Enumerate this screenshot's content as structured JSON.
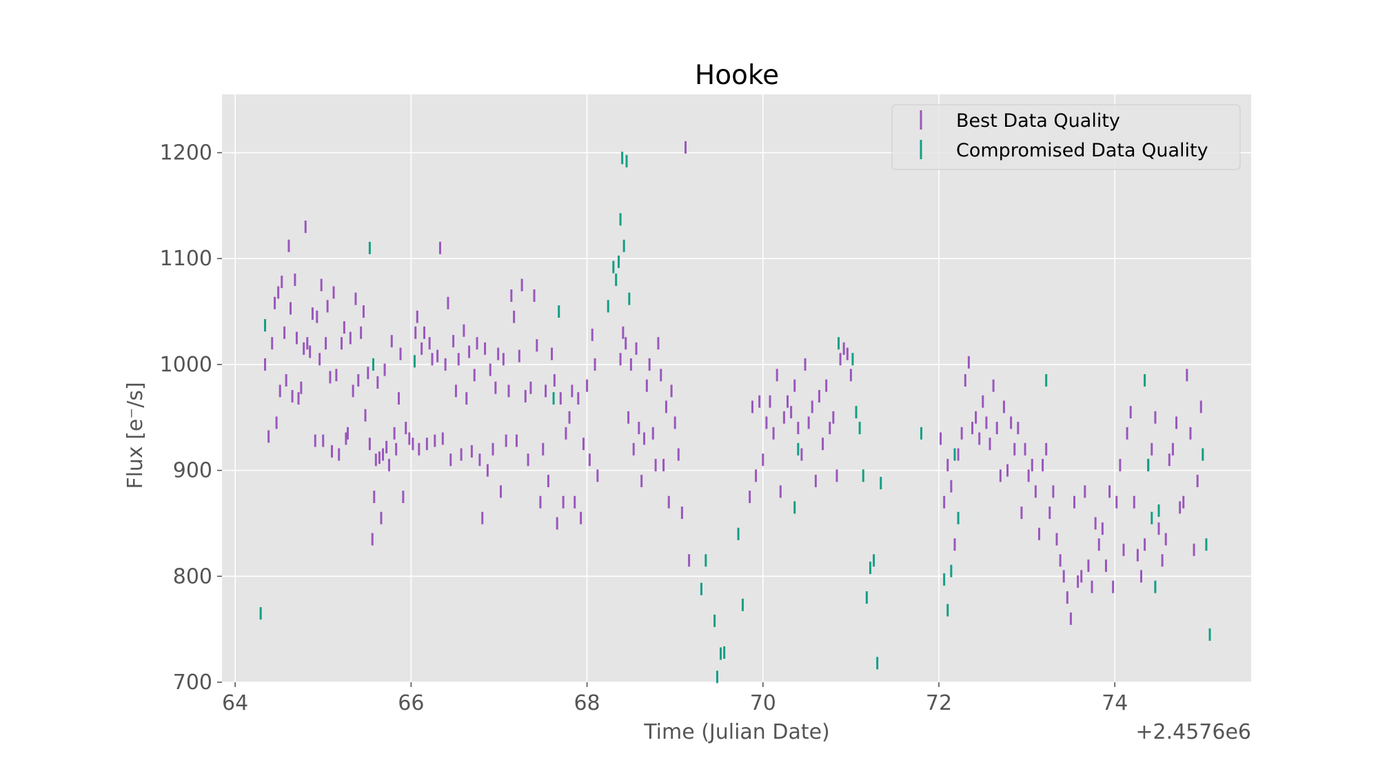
{
  "chart_data": {
    "type": "scatter",
    "title": "Hooke",
    "xlabel": "Time (Julian Date)",
    "ylabel": "Flux [e⁻/s]",
    "x_offset_label": "+2.4576e6",
    "xlim": [
      63.85,
      75.55
    ],
    "ylim": [
      700,
      1255
    ],
    "x_ticks": [
      64,
      66,
      68,
      70,
      72,
      74
    ],
    "y_ticks": [
      700,
      800,
      900,
      1000,
      1100,
      1200
    ],
    "grid": true,
    "legend_position": "top-right",
    "series": [
      {
        "name": "Best Data Quality",
        "color": "#9a56bd",
        "points": [
          [
            64.34,
            1000
          ],
          [
            64.38,
            932
          ],
          [
            64.42,
            1020
          ],
          [
            64.45,
            1058
          ],
          [
            64.47,
            945
          ],
          [
            64.49,
            1068
          ],
          [
            64.51,
            975
          ],
          [
            64.53,
            1078
          ],
          [
            64.56,
            1030
          ],
          [
            64.58,
            985
          ],
          [
            64.61,
            1112
          ],
          [
            64.63,
            1053
          ],
          [
            64.65,
            970
          ],
          [
            64.68,
            1080
          ],
          [
            64.7,
            1025
          ],
          [
            64.72,
            968
          ],
          [
            64.75,
            978
          ],
          [
            64.78,
            1015
          ],
          [
            64.8,
            1130
          ],
          [
            64.82,
            1020
          ],
          [
            64.85,
            1012
          ],
          [
            64.88,
            1048
          ],
          [
            64.91,
            928
          ],
          [
            64.93,
            1045
          ],
          [
            64.96,
            1005
          ],
          [
            64.98,
            1075
          ],
          [
            65.0,
            928
          ],
          [
            65.03,
            1020
          ],
          [
            65.05,
            1055
          ],
          [
            65.08,
            988
          ],
          [
            65.1,
            918
          ],
          [
            65.12,
            1068
          ],
          [
            65.15,
            990
          ],
          [
            65.18,
            915
          ],
          [
            65.21,
            1020
          ],
          [
            65.24,
            1035
          ],
          [
            65.26,
            930
          ],
          [
            65.28,
            935
          ],
          [
            65.31,
            1025
          ],
          [
            65.34,
            975
          ],
          [
            65.37,
            1062
          ],
          [
            65.4,
            985
          ],
          [
            65.43,
            1030
          ],
          [
            65.46,
            1050
          ],
          [
            65.48,
            952
          ],
          [
            65.51,
            992
          ],
          [
            65.53,
            925
          ],
          [
            65.56,
            835
          ],
          [
            65.58,
            875
          ],
          [
            65.6,
            910
          ],
          [
            65.62,
            983
          ],
          [
            65.64,
            912
          ],
          [
            65.66,
            855
          ],
          [
            65.68,
            915
          ],
          [
            65.7,
            995
          ],
          [
            65.72,
            922
          ],
          [
            65.75,
            905
          ],
          [
            65.78,
            1022
          ],
          [
            65.81,
            935
          ],
          [
            65.83,
            920
          ],
          [
            65.86,
            968
          ],
          [
            65.88,
            1010
          ],
          [
            65.91,
            875
          ],
          [
            65.94,
            940
          ],
          [
            65.98,
            930
          ],
          [
            66.02,
            925
          ],
          [
            66.05,
            1030
          ],
          [
            66.07,
            1045
          ],
          [
            66.09,
            920
          ],
          [
            66.12,
            1015
          ],
          [
            66.15,
            1030
          ],
          [
            66.18,
            925
          ],
          [
            66.21,
            1020
          ],
          [
            66.24,
            1005
          ],
          [
            66.27,
            928
          ],
          [
            66.3,
            1008
          ],
          [
            66.33,
            1110
          ],
          [
            66.36,
            930
          ],
          [
            66.39,
            1000
          ],
          [
            66.42,
            1058
          ],
          [
            66.45,
            910
          ],
          [
            66.48,
            1022
          ],
          [
            66.51,
            975
          ],
          [
            66.54,
            1005
          ],
          [
            66.57,
            915
          ],
          [
            66.6,
            1032
          ],
          [
            66.63,
            968
          ],
          [
            66.66,
            1012
          ],
          [
            66.69,
            918
          ],
          [
            66.72,
            990
          ],
          [
            66.75,
            1020
          ],
          [
            66.78,
            910
          ],
          [
            66.81,
            855
          ],
          [
            66.84,
            1015
          ],
          [
            66.87,
            900
          ],
          [
            66.9,
            995
          ],
          [
            66.93,
            920
          ],
          [
            66.96,
            978
          ],
          [
            66.99,
            1010
          ],
          [
            67.02,
            880
          ],
          [
            67.05,
            1005
          ],
          [
            67.08,
            928
          ],
          [
            67.11,
            975
          ],
          [
            67.14,
            1065
          ],
          [
            67.17,
            1045
          ],
          [
            67.2,
            928
          ],
          [
            67.23,
            1008
          ],
          [
            67.26,
            1075
          ],
          [
            67.3,
            970
          ],
          [
            67.33,
            910
          ],
          [
            67.36,
            978
          ],
          [
            67.4,
            1065
          ],
          [
            67.43,
            1018
          ],
          [
            67.47,
            870
          ],
          [
            67.5,
            920
          ],
          [
            67.53,
            975
          ],
          [
            67.56,
            890
          ],
          [
            67.6,
            1010
          ],
          [
            67.63,
            985
          ],
          [
            67.66,
            850
          ],
          [
            67.7,
            968
          ],
          [
            67.73,
            870
          ],
          [
            67.76,
            935
          ],
          [
            67.8,
            950
          ],
          [
            67.83,
            975
          ],
          [
            67.86,
            870
          ],
          [
            67.9,
            968
          ],
          [
            67.93,
            855
          ],
          [
            67.96,
            925
          ],
          [
            68.0,
            980
          ],
          [
            68.03,
            910
          ],
          [
            68.06,
            1028
          ],
          [
            68.09,
            1000
          ],
          [
            68.12,
            895
          ],
          [
            68.38,
            1005
          ],
          [
            68.41,
            1030
          ],
          [
            68.44,
            1020
          ],
          [
            68.47,
            950
          ],
          [
            68.5,
            1000
          ],
          [
            68.53,
            920
          ],
          [
            68.56,
            1015
          ],
          [
            68.59,
            940
          ],
          [
            68.62,
            890
          ],
          [
            68.65,
            930
          ],
          [
            68.68,
            980
          ],
          [
            68.71,
            1000
          ],
          [
            68.75,
            935
          ],
          [
            68.78,
            905
          ],
          [
            68.81,
            1020
          ],
          [
            68.84,
            990
          ],
          [
            68.87,
            905
          ],
          [
            68.9,
            960
          ],
          [
            68.93,
            870
          ],
          [
            68.96,
            975
          ],
          [
            69.0,
            945
          ],
          [
            69.04,
            915
          ],
          [
            69.08,
            860
          ],
          [
            69.12,
            1205
          ],
          [
            69.16,
            815
          ],
          [
            69.85,
            875
          ],
          [
            69.88,
            960
          ],
          [
            69.92,
            895
          ],
          [
            69.96,
            965
          ],
          [
            70.0,
            910
          ],
          [
            70.04,
            945
          ],
          [
            70.08,
            965
          ],
          [
            70.12,
            935
          ],
          [
            70.16,
            990
          ],
          [
            70.2,
            880
          ],
          [
            70.24,
            950
          ],
          [
            70.28,
            965
          ],
          [
            70.32,
            955
          ],
          [
            70.36,
            980
          ],
          [
            70.4,
            940
          ],
          [
            70.44,
            915
          ],
          [
            70.48,
            1000
          ],
          [
            70.52,
            945
          ],
          [
            70.56,
            960
          ],
          [
            70.6,
            890
          ],
          [
            70.64,
            970
          ],
          [
            70.68,
            925
          ],
          [
            70.72,
            980
          ],
          [
            70.76,
            940
          ],
          [
            70.8,
            950
          ],
          [
            70.84,
            895
          ],
          [
            70.88,
            1005
          ],
          [
            70.92,
            1015
          ],
          [
            70.96,
            1010
          ],
          [
            71.0,
            990
          ],
          [
            72.02,
            930
          ],
          [
            72.06,
            870
          ],
          [
            72.1,
            905
          ],
          [
            72.14,
            885
          ],
          [
            72.18,
            830
          ],
          [
            72.22,
            915
          ],
          [
            72.26,
            935
          ],
          [
            72.3,
            985
          ],
          [
            72.34,
            1002
          ],
          [
            72.38,
            940
          ],
          [
            72.42,
            950
          ],
          [
            72.46,
            930
          ],
          [
            72.5,
            965
          ],
          [
            72.54,
            945
          ],
          [
            72.58,
            925
          ],
          [
            72.62,
            980
          ],
          [
            72.66,
            940
          ],
          [
            72.7,
            895
          ],
          [
            72.74,
            960
          ],
          [
            72.78,
            900
          ],
          [
            72.82,
            945
          ],
          [
            72.86,
            920
          ],
          [
            72.9,
            940
          ],
          [
            72.94,
            860
          ],
          [
            72.98,
            920
          ],
          [
            73.02,
            895
          ],
          [
            73.06,
            905
          ],
          [
            73.1,
            880
          ],
          [
            73.14,
            840
          ],
          [
            73.18,
            905
          ],
          [
            73.22,
            920
          ],
          [
            73.26,
            860
          ],
          [
            73.3,
            880
          ],
          [
            73.34,
            835
          ],
          [
            73.38,
            815
          ],
          [
            73.42,
            800
          ],
          [
            73.46,
            780
          ],
          [
            73.5,
            760
          ],
          [
            73.54,
            870
          ],
          [
            73.58,
            795
          ],
          [
            73.62,
            800
          ],
          [
            73.66,
            880
          ],
          [
            73.7,
            810
          ],
          [
            73.74,
            790
          ],
          [
            73.78,
            850
          ],
          [
            73.82,
            830
          ],
          [
            73.86,
            845
          ],
          [
            73.9,
            810
          ],
          [
            73.94,
            880
          ],
          [
            73.98,
            790
          ],
          [
            74.02,
            870
          ],
          [
            74.06,
            905
          ],
          [
            74.1,
            825
          ],
          [
            74.14,
            935
          ],
          [
            74.18,
            955
          ],
          [
            74.22,
            870
          ],
          [
            74.26,
            820
          ],
          [
            74.3,
            800
          ],
          [
            74.34,
            830
          ],
          [
            74.38,
            905
          ],
          [
            74.42,
            920
          ],
          [
            74.46,
            950
          ],
          [
            74.5,
            845
          ],
          [
            74.54,
            815
          ],
          [
            74.58,
            835
          ],
          [
            74.62,
            910
          ],
          [
            74.66,
            920
          ],
          [
            74.7,
            945
          ],
          [
            74.74,
            865
          ],
          [
            74.78,
            870
          ],
          [
            74.82,
            990
          ],
          [
            74.86,
            935
          ],
          [
            74.9,
            825
          ],
          [
            74.94,
            890
          ],
          [
            74.98,
            960
          ]
        ]
      },
      {
        "name": "Compromised Data Quality",
        "color": "#139e85",
        "points": [
          [
            64.29,
            765
          ],
          [
            64.34,
            1037
          ],
          [
            65.53,
            1110
          ],
          [
            65.57,
            1000
          ],
          [
            66.04,
            1003
          ],
          [
            67.62,
            968
          ],
          [
            67.68,
            1050
          ],
          [
            68.24,
            1055
          ],
          [
            68.3,
            1092
          ],
          [
            68.33,
            1080
          ],
          [
            68.36,
            1097
          ],
          [
            68.38,
            1137
          ],
          [
            68.4,
            1195
          ],
          [
            68.42,
            1112
          ],
          [
            68.45,
            1192
          ],
          [
            68.48,
            1062
          ],
          [
            69.3,
            788
          ],
          [
            69.35,
            815
          ],
          [
            69.45,
            758
          ],
          [
            69.48,
            705
          ],
          [
            69.52,
            727
          ],
          [
            69.56,
            728
          ],
          [
            69.72,
            840
          ],
          [
            69.77,
            773
          ],
          [
            70.36,
            865
          ],
          [
            70.4,
            920
          ],
          [
            70.86,
            1020
          ],
          [
            71.02,
            1005
          ],
          [
            71.06,
            955
          ],
          [
            71.1,
            940
          ],
          [
            71.14,
            895
          ],
          [
            71.18,
            780
          ],
          [
            71.22,
            808
          ],
          [
            71.26,
            815
          ],
          [
            71.3,
            718
          ],
          [
            71.34,
            888
          ],
          [
            71.8,
            935
          ],
          [
            72.06,
            797
          ],
          [
            72.1,
            768
          ],
          [
            72.14,
            805
          ],
          [
            72.18,
            915
          ],
          [
            72.22,
            855
          ],
          [
            73.22,
            985
          ],
          [
            74.34,
            985
          ],
          [
            74.38,
            905
          ],
          [
            74.42,
            855
          ],
          [
            74.46,
            790
          ],
          [
            74.5,
            862
          ],
          [
            75.0,
            915
          ],
          [
            75.04,
            830
          ],
          [
            75.08,
            745
          ]
        ]
      }
    ]
  }
}
